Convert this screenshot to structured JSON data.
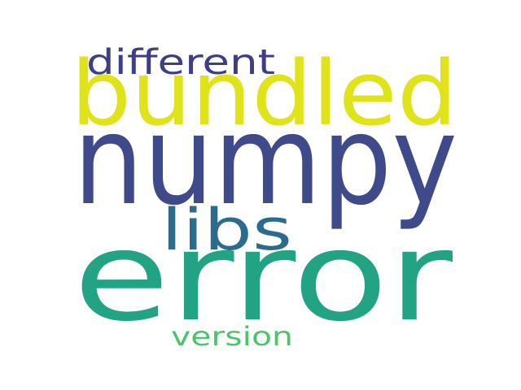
{
  "words": [
    {
      "text": "numpy",
      "color": "#3f4a8a"
    },
    {
      "text": "error",
      "color": "#22a384"
    },
    {
      "text": "bundled",
      "color": "#e0e31a"
    },
    {
      "text": "libs",
      "color": "#2b6c8e"
    },
    {
      "text": "different",
      "color": "#3d3e87"
    },
    {
      "text": "version",
      "color": "#4cc46c"
    }
  ]
}
